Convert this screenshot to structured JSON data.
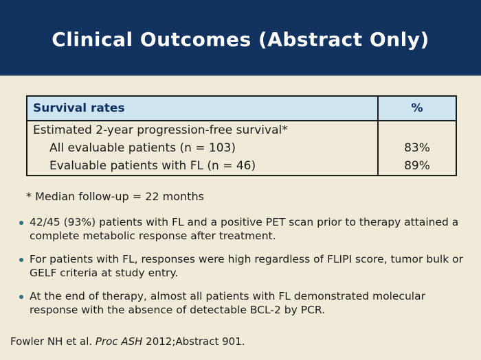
{
  "slide": {
    "title": "Clinical Outcomes (Abstract Only)"
  },
  "table": {
    "header": {
      "label": "Survival rates",
      "value": "%"
    },
    "rows": [
      {
        "label": "Estimated 2-year progression-free survival*",
        "value": ""
      },
      {
        "label": "All evaluable patients (n = 103)",
        "value": "83%"
      },
      {
        "label": "Evaluable patients with FL (n = 46)",
        "value": "89%"
      }
    ]
  },
  "footnote": "* Median follow-up = 22 months",
  "bullets": [
    "42/45 (93%) patients with FL and a positive PET scan prior to therapy attained a complete metabolic response after treatment.",
    "For patients with FL, responses were high regardless of FLIPI score, tumor bulk or GELF criteria at study entry.",
    "At the end of therapy, almost all patients with FL demonstrated molecular response with the absence of detectable BCL-2 by PCR."
  ],
  "citation": {
    "prefix": "Fowler NH et al. ",
    "italic": "Proc ASH",
    "suffix": " 2012;Abstract 901."
  },
  "colors": {
    "header_navy": "#123260",
    "background_cream": "#f0ebd9",
    "table_header_blue": "#cfe6f2",
    "table_header_text": "#0d2e5e",
    "bullet_teal": "#2d6f7a",
    "body_text": "#1a1a1a",
    "table_border": "#1a1a1a"
  }
}
